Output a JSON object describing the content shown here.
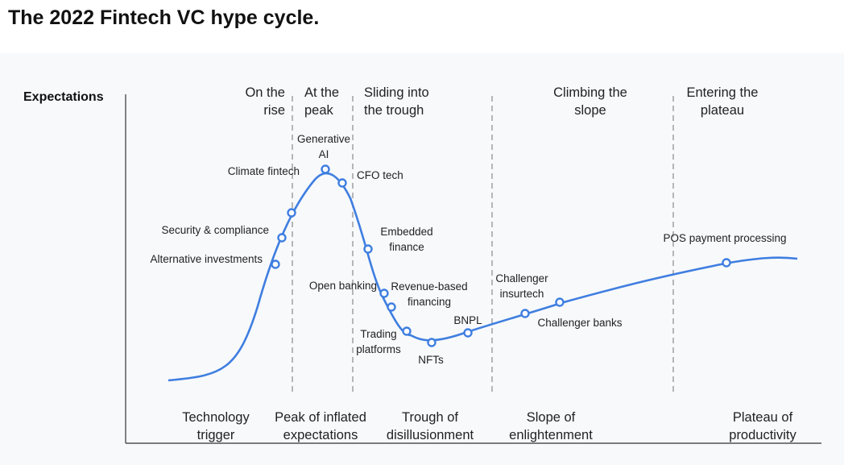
{
  "title": "The 2022 Fintech VC hype cycle.",
  "colors": {
    "curve": "#3f7ee0",
    "panel_background": "#f7f9fb",
    "divider": "#8a8a8a",
    "text": "#222222"
  },
  "chart_data": {
    "type": "line",
    "ylabel": "Expectations",
    "xlabel": "",
    "grid": false,
    "series_color": "#3f7ee0",
    "phases": [
      {
        "name": "On the rise",
        "lines": [
          "On the",
          "rise"
        ]
      },
      {
        "name": "At the peak",
        "lines": [
          "At the",
          "peak"
        ]
      },
      {
        "name": "Sliding into the trough",
        "lines": [
          "Sliding into",
          "the trough"
        ]
      },
      {
        "name": "Climbing the slope",
        "lines": [
          "Climbing the",
          "slope"
        ]
      },
      {
        "name": "Entering the plateau",
        "lines": [
          "Entering the",
          "plateau"
        ]
      }
    ],
    "stages": [
      {
        "name": "Technology trigger",
        "lines": [
          "Technology",
          "trigger"
        ]
      },
      {
        "name": "Peak of inflated expectations",
        "lines": [
          "Peak of inflated",
          "expectations"
        ]
      },
      {
        "name": "Trough of disillusionment",
        "lines": [
          "Trough of",
          "disillusionment"
        ]
      },
      {
        "name": "Slope of enlightenment",
        "lines": [
          "Slope of",
          "enlightenment"
        ]
      },
      {
        "name": "Plateau of productivity",
        "lines": [
          "Plateau of",
          "productivity"
        ]
      }
    ],
    "technologies": [
      {
        "name": "Alternative investments",
        "lines": [
          "Alternative investments"
        ]
      },
      {
        "name": "Security & compliance",
        "lines": [
          "Security & compliance"
        ]
      },
      {
        "name": "Climate fintech",
        "lines": [
          "Climate fintech"
        ]
      },
      {
        "name": "Generative AI",
        "lines": [
          "Generative",
          "AI"
        ]
      },
      {
        "name": "CFO tech",
        "lines": [
          "CFO tech"
        ]
      },
      {
        "name": "Embedded finance",
        "lines": [
          "Embedded",
          "finance"
        ]
      },
      {
        "name": "Open banking",
        "lines": [
          "Open banking"
        ]
      },
      {
        "name": "Revenue-based financing",
        "lines": [
          "Revenue-based",
          "financing"
        ]
      },
      {
        "name": "Trading platforms",
        "lines": [
          "Trading",
          "platforms"
        ]
      },
      {
        "name": "NFTs",
        "lines": [
          "NFTs"
        ]
      },
      {
        "name": "BNPL",
        "lines": [
          "BNPL"
        ]
      },
      {
        "name": "Challenger insurtech",
        "lines": [
          "Challenger",
          "insurtech"
        ]
      },
      {
        "name": "Challenger banks",
        "lines": [
          "Challenger banks"
        ]
      },
      {
        "name": "POS payment processing",
        "lines": [
          "POS payment processing"
        ]
      }
    ]
  }
}
